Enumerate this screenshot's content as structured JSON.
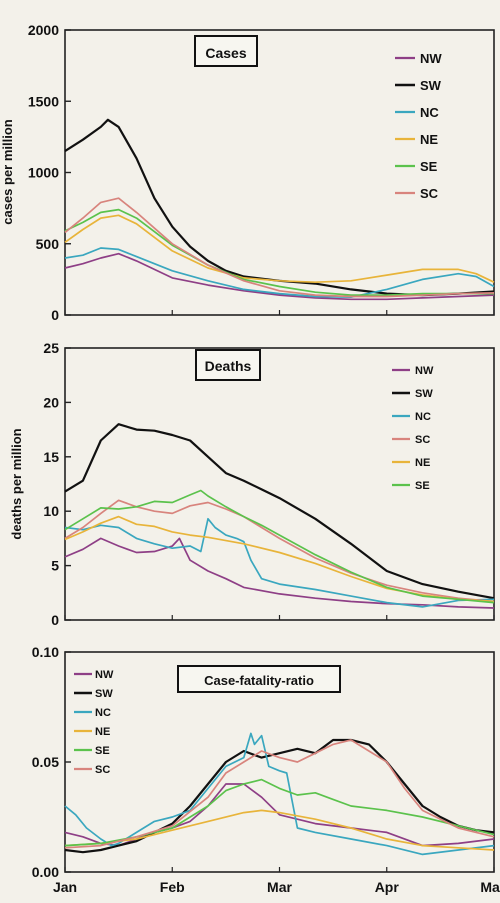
{
  "chart_data": [
    {
      "type": "line",
      "title": "Cases",
      "ylabel": "cases per million",
      "ylim": [
        0,
        2000
      ],
      "yticks": [
        "0",
        "500",
        "1000",
        "1500",
        "2000"
      ],
      "x_day_range": [
        0,
        120
      ],
      "series": [
        {
          "name": "NW",
          "color": "#8e3f86",
          "x": [
            0,
            5,
            10,
            15,
            20,
            25,
            30,
            40,
            50,
            60,
            70,
            80,
            90,
            100,
            110,
            120
          ],
          "values": [
            330,
            360,
            400,
            430,
            380,
            320,
            260,
            210,
            170,
            140,
            120,
            110,
            110,
            120,
            130,
            140
          ]
        },
        {
          "name": "SW",
          "color": "#111111",
          "x": [
            0,
            5,
            10,
            12,
            15,
            20,
            25,
            30,
            35,
            40,
            45,
            50,
            60,
            70,
            80,
            90,
            100,
            110,
            120
          ],
          "values": [
            1150,
            1230,
            1320,
            1370,
            1320,
            1100,
            820,
            620,
            480,
            380,
            310,
            270,
            240,
            220,
            180,
            150,
            140,
            150,
            165
          ]
        },
        {
          "name": "NC",
          "color": "#3aa7bf",
          "x": [
            0,
            5,
            10,
            15,
            20,
            30,
            40,
            50,
            60,
            70,
            80,
            90,
            100,
            110,
            115,
            120
          ],
          "values": [
            400,
            420,
            470,
            460,
            410,
            310,
            240,
            180,
            150,
            130,
            125,
            180,
            250,
            290,
            270,
            200
          ]
        },
        {
          "name": "NE",
          "color": "#e8b43a",
          "x": [
            0,
            5,
            10,
            15,
            20,
            30,
            40,
            50,
            60,
            70,
            80,
            90,
            100,
            110,
            115,
            120
          ],
          "values": [
            510,
            600,
            680,
            700,
            640,
            450,
            330,
            260,
            240,
            230,
            240,
            280,
            320,
            320,
            290,
            230
          ]
        },
        {
          "name": "SE",
          "color": "#5bc24c",
          "x": [
            0,
            5,
            10,
            15,
            20,
            30,
            40,
            50,
            60,
            70,
            80,
            90,
            100,
            110,
            120
          ],
          "values": [
            590,
            650,
            720,
            740,
            680,
            490,
            350,
            250,
            200,
            160,
            140,
            140,
            150,
            150,
            150
          ]
        },
        {
          "name": "SC",
          "color": "#d8847d",
          "x": [
            0,
            5,
            10,
            15,
            20,
            30,
            40,
            50,
            60,
            70,
            80,
            90,
            100,
            110,
            120
          ],
          "values": [
            580,
            680,
            790,
            820,
            720,
            500,
            350,
            240,
            170,
            140,
            130,
            130,
            140,
            150,
            155
          ]
        }
      ]
    },
    {
      "type": "line",
      "title": "Deaths",
      "ylabel": "deaths per million",
      "ylim": [
        0,
        25
      ],
      "yticks": [
        "0",
        "5",
        "10",
        "15",
        "20",
        "25"
      ],
      "x_day_range": [
        0,
        120
      ],
      "series": [
        {
          "name": "NW",
          "color": "#8e3f86",
          "x": [
            0,
            5,
            10,
            15,
            20,
            25,
            30,
            32,
            35,
            40,
            45,
            50,
            60,
            70,
            80,
            90,
            100,
            110,
            120
          ],
          "values": [
            5.8,
            6.5,
            7.5,
            6.8,
            6.2,
            6.3,
            6.8,
            7.5,
            5.5,
            4.5,
            3.8,
            3.0,
            2.4,
            2.0,
            1.7,
            1.5,
            1.4,
            1.2,
            1.1
          ]
        },
        {
          "name": "SW",
          "color": "#111111",
          "x": [
            0,
            5,
            10,
            15,
            20,
            25,
            30,
            35,
            40,
            45,
            50,
            55,
            60,
            70,
            80,
            90,
            100,
            110,
            120
          ],
          "values": [
            11.8,
            12.8,
            16.5,
            18.0,
            17.5,
            17.4,
            17.0,
            16.5,
            15.0,
            13.5,
            12.8,
            12.0,
            11.2,
            9.3,
            7.0,
            4.5,
            3.3,
            2.6,
            2.0
          ]
        },
        {
          "name": "NC",
          "color": "#3aa7bf",
          "x": [
            0,
            5,
            10,
            15,
            20,
            25,
            30,
            35,
            38,
            40,
            42,
            45,
            48,
            50,
            52,
            55,
            60,
            70,
            80,
            90,
            100,
            110,
            120
          ],
          "values": [
            8.5,
            8.3,
            8.7,
            8.5,
            7.5,
            7.0,
            6.6,
            6.8,
            6.3,
            9.3,
            8.5,
            7.8,
            7.5,
            7.2,
            5.5,
            3.8,
            3.3,
            2.8,
            2.2,
            1.6,
            1.2,
            1.8,
            1.9
          ]
        },
        {
          "name": "SC",
          "color": "#d8847d",
          "x": [
            0,
            5,
            10,
            15,
            20,
            25,
            30,
            35,
            40,
            45,
            50,
            55,
            60,
            70,
            80,
            90,
            100,
            110,
            120
          ],
          "values": [
            7.5,
            8.5,
            9.8,
            11.0,
            10.4,
            10.0,
            9.8,
            10.5,
            10.8,
            10.2,
            9.5,
            8.5,
            7.5,
            5.7,
            4.3,
            3.2,
            2.5,
            2.0,
            1.7
          ]
        },
        {
          "name": "NE",
          "color": "#e8b43a",
          "x": [
            0,
            5,
            10,
            15,
            20,
            25,
            30,
            35,
            40,
            45,
            50,
            60,
            70,
            80,
            90,
            100,
            110,
            120
          ],
          "values": [
            7.4,
            8.1,
            8.9,
            9.5,
            8.8,
            8.6,
            8.1,
            7.8,
            7.6,
            7.3,
            7.0,
            6.2,
            5.2,
            4.0,
            2.9,
            2.3,
            1.9,
            1.7
          ]
        },
        {
          "name": "SE",
          "color": "#5bc24c",
          "x": [
            0,
            5,
            10,
            15,
            20,
            25,
            30,
            35,
            38,
            40,
            45,
            50,
            55,
            60,
            70,
            80,
            90,
            100,
            110,
            120
          ],
          "values": [
            8.3,
            9.3,
            10.3,
            10.2,
            10.4,
            10.9,
            10.8,
            11.5,
            11.9,
            11.4,
            10.4,
            9.5,
            8.7,
            7.8,
            6.0,
            4.4,
            3.0,
            2.2,
            1.9,
            1.6
          ]
        }
      ]
    },
    {
      "type": "line",
      "title": "Case-fatality-ratio",
      "ylabel": "",
      "ylim": [
        0,
        0.1
      ],
      "yticks": [
        "0.00",
        "0.05",
        "0.10"
      ],
      "xticks": [
        "Jan",
        "Feb",
        "Mar",
        "Apr",
        "May"
      ],
      "x_day_range": [
        0,
        120
      ],
      "series": [
        {
          "name": "NW",
          "color": "#8e3f86",
          "x": [
            0,
            5,
            10,
            15,
            20,
            25,
            30,
            35,
            40,
            45,
            50,
            55,
            60,
            65,
            70,
            80,
            90,
            100,
            110,
            120
          ],
          "values": [
            0.018,
            0.016,
            0.013,
            0.012,
            0.015,
            0.018,
            0.02,
            0.023,
            0.03,
            0.04,
            0.04,
            0.034,
            0.026,
            0.024,
            0.022,
            0.02,
            0.018,
            0.012,
            0.013,
            0.015
          ]
        },
        {
          "name": "SW",
          "color": "#111111",
          "x": [
            0,
            5,
            10,
            15,
            20,
            25,
            30,
            35,
            40,
            45,
            50,
            55,
            60,
            65,
            70,
            75,
            80,
            85,
            90,
            95,
            100,
            105,
            110,
            115,
            120
          ],
          "values": [
            0.01,
            0.009,
            0.01,
            0.012,
            0.014,
            0.018,
            0.022,
            0.03,
            0.04,
            0.05,
            0.055,
            0.052,
            0.054,
            0.056,
            0.054,
            0.06,
            0.06,
            0.058,
            0.05,
            0.04,
            0.03,
            0.025,
            0.021,
            0.019,
            0.018
          ]
        },
        {
          "name": "NC",
          "color": "#3aa7bf",
          "x": [
            0,
            3,
            6,
            10,
            13,
            15,
            20,
            25,
            30,
            35,
            40,
            45,
            50,
            52,
            53,
            55,
            57,
            60,
            62,
            65,
            70,
            80,
            90,
            100,
            110,
            120
          ],
          "values": [
            0.03,
            0.026,
            0.02,
            0.015,
            0.012,
            0.013,
            0.018,
            0.023,
            0.025,
            0.028,
            0.038,
            0.048,
            0.052,
            0.063,
            0.058,
            0.062,
            0.048,
            0.046,
            0.045,
            0.02,
            0.018,
            0.015,
            0.012,
            0.008,
            0.01,
            0.012
          ]
        },
        {
          "name": "NE",
          "color": "#e8b43a",
          "x": [
            0,
            10,
            20,
            30,
            40,
            50,
            55,
            60,
            70,
            80,
            90,
            100,
            110,
            120
          ],
          "values": [
            0.012,
            0.013,
            0.015,
            0.019,
            0.023,
            0.027,
            0.028,
            0.027,
            0.024,
            0.02,
            0.015,
            0.012,
            0.011,
            0.01
          ]
        },
        {
          "name": "SE",
          "color": "#5bc24c",
          "x": [
            0,
            10,
            20,
            30,
            40,
            45,
            50,
            55,
            60,
            65,
            70,
            75,
            80,
            90,
            100,
            110,
            120
          ],
          "values": [
            0.012,
            0.013,
            0.016,
            0.02,
            0.03,
            0.037,
            0.04,
            0.042,
            0.038,
            0.035,
            0.036,
            0.033,
            0.03,
            0.028,
            0.025,
            0.021,
            0.017
          ]
        },
        {
          "name": "SC",
          "color": "#d8847d",
          "x": [
            0,
            10,
            20,
            30,
            40,
            45,
            50,
            55,
            60,
            65,
            70,
            75,
            80,
            85,
            90,
            95,
            100,
            110,
            120
          ],
          "values": [
            0.011,
            0.012,
            0.016,
            0.021,
            0.034,
            0.045,
            0.05,
            0.055,
            0.052,
            0.05,
            0.054,
            0.058,
            0.06,
            0.055,
            0.05,
            0.038,
            0.028,
            0.02,
            0.016
          ]
        }
      ]
    }
  ]
}
